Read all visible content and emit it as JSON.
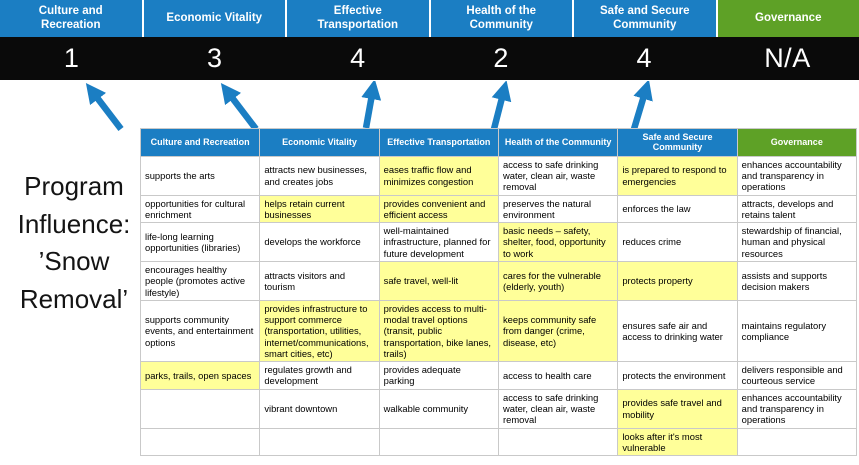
{
  "title": "Program Influence: ’Snow Removal’",
  "colors": {
    "blue": "#1B7EC3",
    "green": "#5EA126",
    "yellow": "#FFFF99",
    "score_band_bg": "#0A0A0A",
    "score_text": "#FFFFFF",
    "arrow": "#1B7EC3"
  },
  "scoreboard": {
    "columns": [
      {
        "label": "Culture and Recreation",
        "score": "1",
        "green": false
      },
      {
        "label": "Economic Vitality",
        "score": "3",
        "green": false
      },
      {
        "label": "Effective Transportation",
        "score": "4",
        "green": false
      },
      {
        "label": "Health of the Community",
        "score": "2",
        "green": false
      },
      {
        "label": "Safe and Secure Community",
        "score": "4",
        "green": false
      },
      {
        "label": "Governance",
        "score": "N/A",
        "green": true
      }
    ]
  },
  "matrix": {
    "headers": [
      {
        "label": "Culture and Recreation",
        "green": false
      },
      {
        "label": "Economic Vitality",
        "green": false
      },
      {
        "label": "Effective Transportation",
        "green": false
      },
      {
        "label": "Health of the Community",
        "green": false
      },
      {
        "label": "Safe and Secure Community",
        "green": false
      },
      {
        "label": "Governance",
        "green": true
      }
    ],
    "rows": [
      [
        {
          "text": "supports the arts",
          "highlight": false
        },
        {
          "text": "attracts new businesses, and creates jobs",
          "highlight": false
        },
        {
          "text": "eases traffic flow and minimizes congestion",
          "highlight": true
        },
        {
          "text": "access to safe drinking water, clean air, waste removal",
          "highlight": false
        },
        {
          "text": "is prepared to respond to emergencies",
          "highlight": true
        },
        {
          "text": "enhances accountability and transparency in operations",
          "highlight": false
        }
      ],
      [
        {
          "text": "opportunities for cultural enrichment",
          "highlight": false
        },
        {
          "text": "helps retain current businesses",
          "highlight": true
        },
        {
          "text": "provides convenient and efficient access",
          "highlight": true
        },
        {
          "text": "preserves the natural environment",
          "highlight": false
        },
        {
          "text": "enforces the law",
          "highlight": false
        },
        {
          "text": "attracts, develops and retains talent",
          "highlight": false
        }
      ],
      [
        {
          "text": "life-long learning opportunities (libraries)",
          "highlight": false
        },
        {
          "text": "develops the workforce",
          "highlight": false
        },
        {
          "text": "well-maintained infrastructure, planned for future development",
          "highlight": false
        },
        {
          "text": "basic needs – safety, shelter, food, opportunity to work",
          "highlight": true
        },
        {
          "text": "reduces crime",
          "highlight": false
        },
        {
          "text": "stewardship of financial, human and physical resources",
          "highlight": false
        }
      ],
      [
        {
          "text": "encourages healthy people (promotes active lifestyle)",
          "highlight": false
        },
        {
          "text": "attracts visitors and tourism",
          "highlight": false
        },
        {
          "text": "safe travel, well-lit",
          "highlight": true
        },
        {
          "text": "cares for the vulnerable (elderly, youth)",
          "highlight": true
        },
        {
          "text": "protects property",
          "highlight": true
        },
        {
          "text": "assists and supports decision makers",
          "highlight": false
        }
      ],
      [
        {
          "text": "supports community events, and entertainment options",
          "highlight": false
        },
        {
          "text": "provides infrastructure to support commerce (transportation, utilities, internet/communications, smart cities, etc)",
          "highlight": true
        },
        {
          "text": "provides access to multi-modal travel options (transit, public transportation, bike lanes, trails)",
          "highlight": true
        },
        {
          "text": "keeps community safe from danger (crime, disease, etc)",
          "highlight": true
        },
        {
          "text": "ensures safe air and access to drinking water",
          "highlight": false
        },
        {
          "text": "maintains regulatory compliance",
          "highlight": false
        }
      ],
      [
        {
          "text": "parks, trails, open spaces",
          "highlight": true
        },
        {
          "text": "regulates growth and development",
          "highlight": false
        },
        {
          "text": "provides adequate parking",
          "highlight": false
        },
        {
          "text": "access to health care",
          "highlight": false
        },
        {
          "text": "protects the environment",
          "highlight": false
        },
        {
          "text": "delivers responsible and courteous service",
          "highlight": false
        }
      ],
      [
        {
          "text": "",
          "highlight": false
        },
        {
          "text": "vibrant downtown",
          "highlight": false
        },
        {
          "text": "walkable community",
          "highlight": false
        },
        {
          "text": "access to safe drinking water, clean air, waste removal",
          "highlight": false
        },
        {
          "text": "provides safe travel and mobility",
          "highlight": true
        },
        {
          "text": "enhances accountability and transparency in operations",
          "highlight": false
        }
      ],
      [
        {
          "text": "",
          "highlight": false
        },
        {
          "text": "",
          "highlight": false
        },
        {
          "text": "",
          "highlight": false
        },
        {
          "text": "",
          "highlight": false
        },
        {
          "text": "looks after it's most vulnerable",
          "highlight": true
        },
        {
          "text": "",
          "highlight": false
        }
      ]
    ]
  }
}
